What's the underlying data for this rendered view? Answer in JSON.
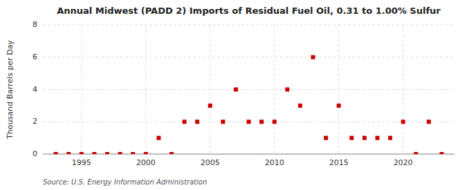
{
  "chart_data": {
    "type": "scatter",
    "title": "Annual Midwest (PADD 2) Imports of Residual Fuel Oil, 0.31 to 1.00% Sulfur",
    "ylabel": "Thousand Barrels per Day",
    "source": "Source: U.S. Energy Information Administration",
    "x": [
      1993,
      1994,
      1995,
      1996,
      1997,
      1998,
      1999,
      2000,
      2001,
      2002,
      2003,
      2004,
      2005,
      2006,
      2007,
      2008,
      2009,
      2010,
      2011,
      2012,
      2013,
      2014,
      2015,
      2016,
      2017,
      2018,
      2019,
      2020,
      2021,
      2022,
      2023
    ],
    "values": [
      0,
      0,
      0,
      0,
      0,
      0,
      0,
      0,
      1,
      0,
      2,
      2,
      3,
      2,
      4,
      2,
      2,
      2,
      4,
      3,
      6,
      1,
      3,
      1,
      1,
      1,
      1,
      2,
      0,
      2,
      0
    ],
    "color": "#cc0000",
    "marker": "square",
    "xlim": [
      1992,
      2024
    ],
    "xticks": [
      1995,
      2000,
      2005,
      2010,
      2015,
      2020
    ],
    "ylim": [
      0,
      8
    ],
    "yticks": [
      0,
      2,
      4,
      6,
      8
    ],
    "grid": true
  }
}
